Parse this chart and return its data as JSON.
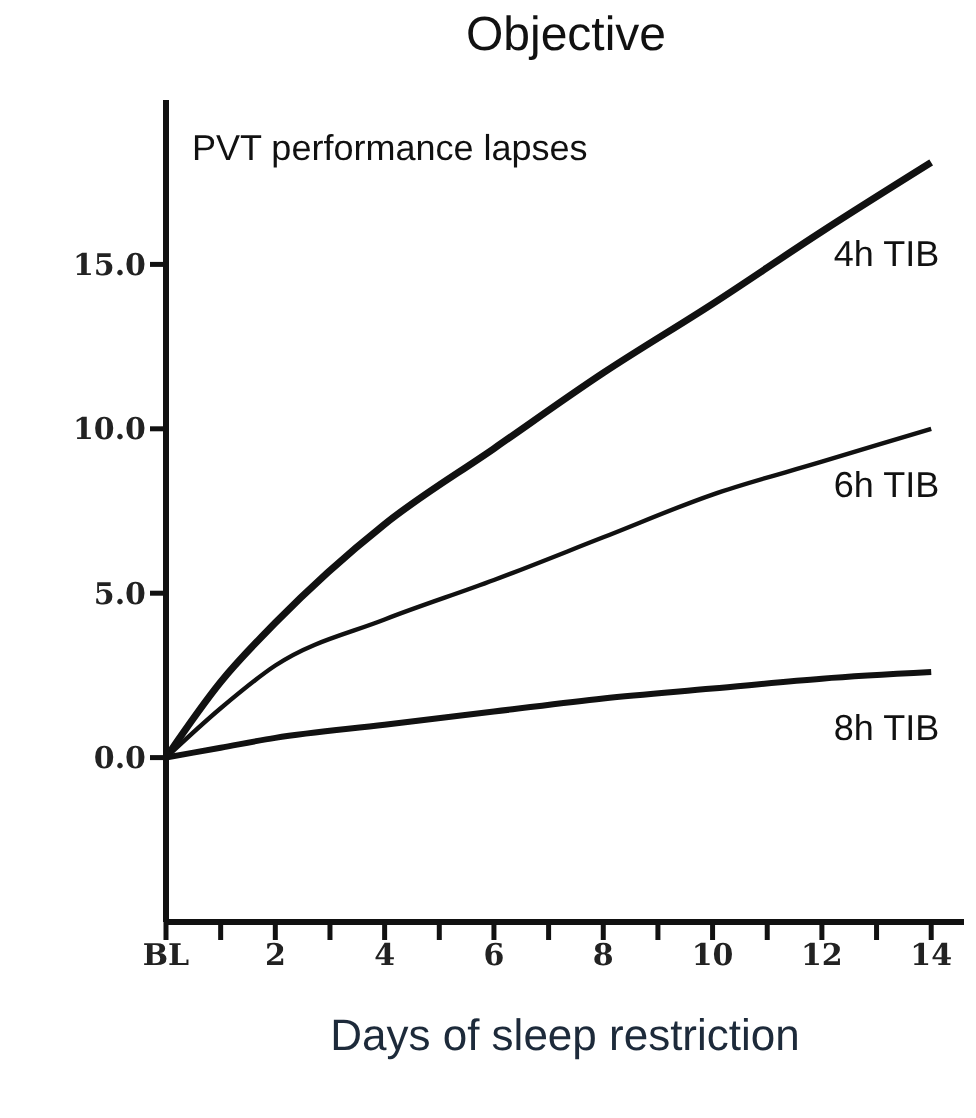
{
  "chart_data": {
    "type": "line",
    "title": "Objective",
    "xlabel": "Days of sleep restriction",
    "ylabel": "PVT performance lapses",
    "x": [
      0,
      1,
      2,
      4,
      6,
      8,
      10,
      12,
      14
    ],
    "series": [
      {
        "name": "4h TIB",
        "color": "#111111",
        "values": [
          0,
          2.3,
          4.1,
          7.1,
          9.4,
          11.7,
          13.8,
          16.0,
          18.1
        ]
      },
      {
        "name": "6h TIB",
        "color": "#111111",
        "values": [
          0,
          1.5,
          2.8,
          4.2,
          5.4,
          6.7,
          8.0,
          9.0,
          10.0
        ]
      },
      {
        "name": "8h TIB",
        "color": "#111111",
        "values": [
          0,
          0.3,
          0.6,
          1.0,
          1.4,
          1.8,
          2.1,
          2.4,
          2.6
        ]
      }
    ],
    "xlim": [
      0,
      14.6
    ],
    "xticks": [
      {
        "value": 0,
        "label": "BL"
      },
      {
        "value": 1,
        "label": null
      },
      2,
      {
        "value": 3,
        "label": null
      },
      4,
      {
        "value": 5,
        "label": null
      },
      6,
      {
        "value": 7,
        "label": null
      },
      8,
      {
        "value": 9,
        "label": null
      },
      10,
      {
        "value": 11,
        "label": null
      },
      12,
      {
        "value": 13,
        "label": null
      },
      14
    ],
    "ylim": [
      -5,
      20
    ],
    "yticks": [
      {
        "value": 0,
        "label": "0.0"
      },
      {
        "value": 5,
        "label": "5.0"
      },
      {
        "value": 10,
        "label": "10.0"
      },
      {
        "value": 15,
        "label": "15.0"
      }
    ],
    "grid": false,
    "legend": false,
    "marker": "none",
    "line_style": "solid"
  }
}
